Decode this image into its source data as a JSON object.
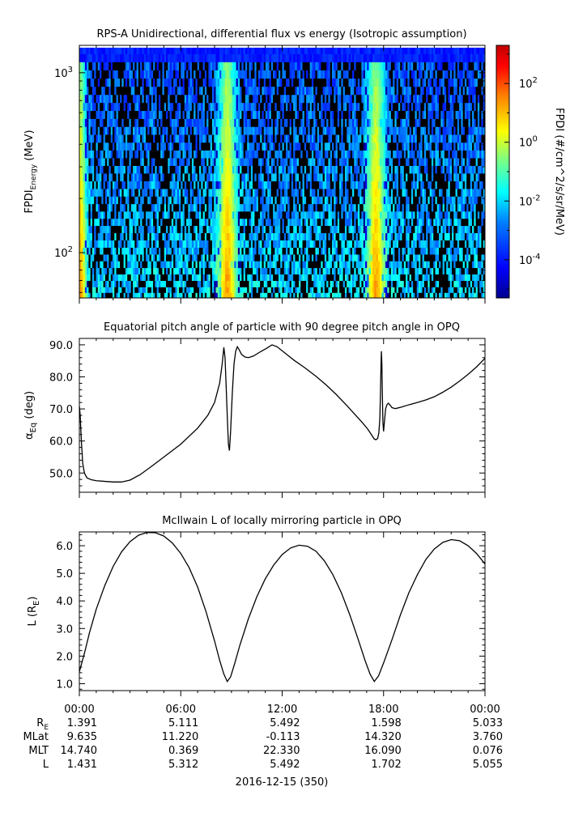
{
  "chart_data": [
    {
      "type": "heatmap",
      "title": "RPS-A Unidirectional, differential flux vs energy (Isotropic assumption)",
      "ylabel_main": "FPDI",
      "ylabel_sub": "Energy",
      "ylabel_unit": " (MeV)",
      "yscale": "log",
      "ylim": [
        56,
        1420
      ],
      "yticks": [
        {
          "value": 100,
          "base": "10",
          "exp": "2"
        },
        {
          "value": 1000,
          "base": "10",
          "exp": "3"
        }
      ],
      "x_hours": [
        0,
        24
      ],
      "energy_bins_mev": [
        58,
        62,
        67,
        73,
        79,
        86,
        94,
        102,
        112,
        123,
        135,
        148,
        162,
        178,
        196,
        216,
        238,
        263,
        290,
        320,
        353,
        390,
        431,
        477,
        528,
        585,
        648,
        718,
        796,
        884,
        982,
        1090,
        1210,
        1340
      ],
      "features": [
        {
          "name": "start-edge",
          "center_hour": 0.05,
          "width_hours": 0.35,
          "peak_log10": 1.2
        },
        {
          "name": "band-1",
          "center_hour": 8.75,
          "width_hours": 0.55,
          "peak_log10": 1.3
        },
        {
          "name": "band-2",
          "center_hour": 17.55,
          "width_hours": 0.55,
          "peak_log10": 1.3
        }
      ],
      "colorbar": {
        "label": "FPDI (#/cm^2/s/sr/MeV)",
        "log10_range": [
          -5.3,
          3.3
        ],
        "ticks": [
          {
            "value": 2,
            "base": "10",
            "exp": "2"
          },
          {
            "value": 0,
            "base": "10",
            "exp": "0"
          },
          {
            "value": -2,
            "base": "10",
            "exp": "-2"
          },
          {
            "value": -4,
            "base": "10",
            "exp": "-4"
          }
        ],
        "colors": [
          "#00008f",
          "#0000ff",
          "#0080ff",
          "#00ffff",
          "#80ff80",
          "#ffff00",
          "#ff8000",
          "#ff0000",
          "#800000"
        ]
      }
    },
    {
      "type": "line",
      "title": "Equatorial pitch angle of particle with 90 degree pitch angle in OPQ",
      "ylabel_main": "α",
      "ylabel_sub": "Eq",
      "ylabel_unit": " (deg)",
      "ylim": [
        44,
        92
      ],
      "yticks": [
        50,
        60,
        70,
        80,
        90
      ],
      "x_hours": [
        0,
        24
      ],
      "points": [
        [
          0.0,
          71
        ],
        [
          0.05,
          68
        ],
        [
          0.12,
          60
        ],
        [
          0.2,
          53
        ],
        [
          0.3,
          50
        ],
        [
          0.45,
          48.5
        ],
        [
          0.7,
          47.9
        ],
        [
          1.0,
          47.6
        ],
        [
          1.5,
          47.4
        ],
        [
          2.0,
          47.2
        ],
        [
          2.5,
          47.2
        ],
        [
          3.0,
          47.8
        ],
        [
          3.6,
          49.5
        ],
        [
          4.2,
          51.8
        ],
        [
          5.0,
          55
        ],
        [
          6.0,
          59
        ],
        [
          7.0,
          64
        ],
        [
          7.6,
          68
        ],
        [
          8.0,
          72
        ],
        [
          8.3,
          78
        ],
        [
          8.45,
          84
        ],
        [
          8.55,
          89.2
        ],
        [
          8.62,
          86
        ],
        [
          8.68,
          78
        ],
        [
          8.75,
          68
        ],
        [
          8.82,
          59
        ],
        [
          8.88,
          57
        ],
        [
          8.95,
          63
        ],
        [
          9.05,
          75
        ],
        [
          9.15,
          84
        ],
        [
          9.25,
          88
        ],
        [
          9.35,
          89.4
        ],
        [
          9.45,
          88.5
        ],
        [
          9.6,
          87
        ],
        [
          9.8,
          86.2
        ],
        [
          10.0,
          86
        ],
        [
          10.3,
          86.5
        ],
        [
          10.7,
          87.8
        ],
        [
          11.1,
          89
        ],
        [
          11.4,
          90
        ],
        [
          11.7,
          89.4
        ],
        [
          12.2,
          87.3
        ],
        [
          12.7,
          85.2
        ],
        [
          13.3,
          83
        ],
        [
          14.0,
          80.2
        ],
        [
          14.6,
          77.5
        ],
        [
          15.2,
          74.5
        ],
        [
          15.8,
          71.2
        ],
        [
          16.3,
          68.3
        ],
        [
          16.7,
          66
        ],
        [
          17.05,
          63.8
        ],
        [
          17.3,
          61.8
        ],
        [
          17.45,
          60.6
        ],
        [
          17.55,
          60.4
        ],
        [
          17.65,
          60.8
        ],
        [
          17.72,
          62.5
        ],
        [
          17.78,
          67
        ],
        [
          17.82,
          76
        ],
        [
          17.85,
          84
        ],
        [
          17.87,
          88
        ],
        [
          17.9,
          84
        ],
        [
          17.93,
          74
        ],
        [
          17.96,
          66
        ],
        [
          18.0,
          63
        ],
        [
          18.05,
          66
        ],
        [
          18.12,
          70
        ],
        [
          18.2,
          71.3
        ],
        [
          18.28,
          71.8
        ],
        [
          18.38,
          71.2
        ],
        [
          18.5,
          70.4
        ],
        [
          18.7,
          70.1
        ],
        [
          19.0,
          70.5
        ],
        [
          19.5,
          71.3
        ],
        [
          20.0,
          72
        ],
        [
          20.5,
          72.8
        ],
        [
          21.0,
          73.8
        ],
        [
          21.5,
          75.2
        ],
        [
          22.0,
          76.8
        ],
        [
          22.5,
          78.7
        ],
        [
          23.0,
          80.8
        ],
        [
          23.5,
          83.1
        ],
        [
          24.0,
          85.8
        ]
      ]
    },
    {
      "type": "line",
      "title": "McIlwain L of locally mirroring particle in OPQ",
      "ylabel_main": "L (R",
      "ylabel_sub": "E",
      "ylabel_unit": ")",
      "ylim": [
        0.75,
        6.5
      ],
      "yticks": [
        1,
        2,
        3,
        4,
        5,
        6
      ],
      "x_hours": [
        0,
        24
      ],
      "points": [
        [
          0.0,
          1.43
        ],
        [
          0.3,
          2.1
        ],
        [
          0.6,
          2.85
        ],
        [
          1.0,
          3.7
        ],
        [
          1.5,
          4.55
        ],
        [
          2.0,
          5.25
        ],
        [
          2.5,
          5.78
        ],
        [
          3.0,
          6.15
        ],
        [
          3.5,
          6.38
        ],
        [
          4.0,
          6.48
        ],
        [
          4.5,
          6.47
        ],
        [
          5.0,
          6.35
        ],
        [
          5.5,
          6.1
        ],
        [
          6.0,
          5.72
        ],
        [
          6.5,
          5.2
        ],
        [
          7.0,
          4.5
        ],
        [
          7.5,
          3.6
        ],
        [
          8.0,
          2.55
        ],
        [
          8.3,
          1.85
        ],
        [
          8.55,
          1.35
        ],
        [
          8.75,
          1.08
        ],
        [
          8.95,
          1.25
        ],
        [
          9.2,
          1.75
        ],
        [
          9.5,
          2.4
        ],
        [
          10.0,
          3.35
        ],
        [
          10.5,
          4.15
        ],
        [
          11.0,
          4.8
        ],
        [
          11.5,
          5.3
        ],
        [
          12.0,
          5.68
        ],
        [
          12.5,
          5.92
        ],
        [
          13.0,
          6.02
        ],
        [
          13.5,
          5.98
        ],
        [
          14.0,
          5.8
        ],
        [
          14.5,
          5.45
        ],
        [
          15.0,
          4.95
        ],
        [
          15.5,
          4.3
        ],
        [
          16.0,
          3.5
        ],
        [
          16.5,
          2.6
        ],
        [
          16.9,
          1.85
        ],
        [
          17.2,
          1.35
        ],
        [
          17.45,
          1.08
        ],
        [
          17.7,
          1.28
        ],
        [
          18.0,
          1.75
        ],
        [
          18.5,
          2.6
        ],
        [
          19.0,
          3.5
        ],
        [
          19.5,
          4.3
        ],
        [
          20.0,
          4.95
        ],
        [
          20.5,
          5.5
        ],
        [
          21.0,
          5.88
        ],
        [
          21.5,
          6.12
        ],
        [
          22.0,
          6.22
        ],
        [
          22.5,
          6.18
        ],
        [
          23.0,
          6.0
        ],
        [
          23.5,
          5.72
        ],
        [
          24.0,
          5.34
        ]
      ]
    }
  ],
  "time_axis": {
    "tick_labels": [
      "00:00",
      "06:00",
      "12:00",
      "18:00",
      "00:00"
    ],
    "tick_hours": [
      0,
      6,
      12,
      18,
      24
    ],
    "minor_step_hours": 1,
    "date_label": "2016-12-15 (350)"
  },
  "ephemeris": [
    {
      "label": "R",
      "sub": "E",
      "values": [
        "1.391",
        "5.111",
        "5.492",
        "1.598",
        "5.033"
      ]
    },
    {
      "label": "MLat",
      "sub": "",
      "values": [
        "9.635",
        "11.220",
        "-0.113",
        "14.320",
        "3.760"
      ]
    },
    {
      "label": "MLT",
      "sub": "",
      "values": [
        "14.740",
        "0.369",
        "22.330",
        "16.090",
        "0.076"
      ]
    },
    {
      "label": "L",
      "sub": "",
      "values": [
        "1.431",
        "5.312",
        "5.492",
        "1.702",
        "5.055"
      ]
    }
  ]
}
